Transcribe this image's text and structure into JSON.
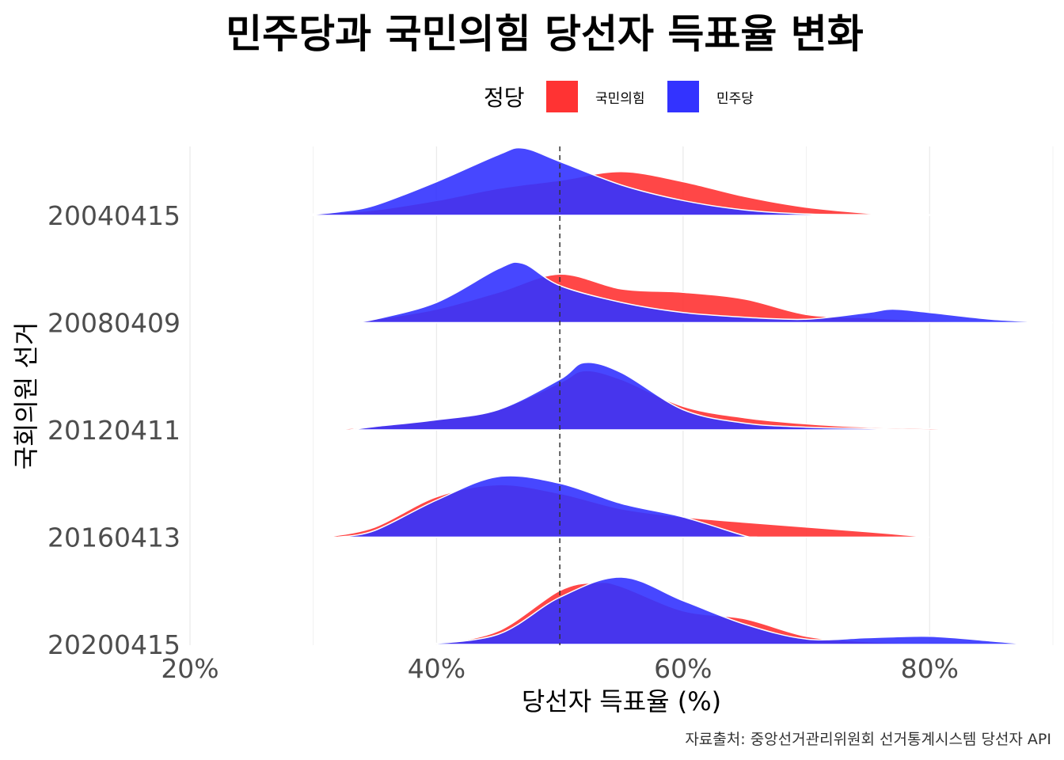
{
  "chart_data": {
    "type": "area",
    "subtype": "ridgeline-density",
    "title": "민주당과 국민의힘 당선자 득표율 변화",
    "xlabel": "당선자 득표율 (%)",
    "ylabel": "국회의원 선거",
    "caption": "자료출처: 중앙선거관리위원회 선거통계시스템 당선자 API",
    "legend": {
      "title": "정당",
      "position": "top",
      "items": [
        {
          "name": "국민의힘",
          "color": "#ff3333"
        },
        {
          "name": "민주당",
          "color": "#3333ff"
        }
      ]
    },
    "xlim": [
      20,
      90
    ],
    "x_ticks": [
      20,
      40,
      60,
      80
    ],
    "x_tick_labels": [
      "20%",
      "40%",
      "60%",
      "80%"
    ],
    "reference_line": 50,
    "grid": true,
    "categories": [
      "20200415",
      "20160413",
      "20120411",
      "20080409",
      "20040415"
    ],
    "series": [
      {
        "name": "국민의힘",
        "color": "#ff3333",
        "densities": [
          {
            "category": "20040415",
            "x": [
              27.5,
              30,
              35,
              40,
              45,
              50,
              55,
              60,
              65,
              70,
              75,
              78
            ],
            "y": [
              0,
              0.02,
              0.08,
              0.22,
              0.4,
              0.52,
              0.65,
              0.5,
              0.28,
              0.12,
              0.03,
              0
            ]
          },
          {
            "category": "20080409",
            "x": [
              32,
              35,
              40,
              45,
              50,
              55,
              60,
              65,
              70,
              75,
              80,
              85,
              90
            ],
            "y": [
              0,
              0.05,
              0.2,
              0.45,
              0.72,
              0.5,
              0.45,
              0.35,
              0.12,
              0.07,
              0.03,
              0.01,
              0
            ]
          },
          {
            "category": "20120411",
            "x": [
              31,
              35,
              40,
              45,
              50,
              52,
              55,
              60,
              65,
              70,
              75,
              80,
              85
            ],
            "y": [
              0,
              0.05,
              0.16,
              0.3,
              0.7,
              0.88,
              0.75,
              0.35,
              0.18,
              0.09,
              0.04,
              0.02,
              0
            ]
          },
          {
            "category": "20160413",
            "x": [
              31,
              35,
              40,
              45,
              50,
              55,
              60,
              65,
              70,
              75,
              80
            ],
            "y": [
              0,
              0.15,
              0.6,
              0.78,
              0.65,
              0.42,
              0.3,
              0.22,
              0.15,
              0.08,
              0
            ]
          },
          {
            "category": "20200415",
            "x": [
              40,
              45,
              50,
              53,
              55,
              60,
              65,
              70,
              75,
              80,
              85
            ],
            "y": [
              0,
              0.2,
              0.8,
              0.92,
              0.86,
              0.5,
              0.38,
              0.12,
              0.04,
              0.01,
              0
            ]
          }
        ]
      },
      {
        "name": "민주당",
        "color": "#3333ff",
        "densities": [
          {
            "category": "20040415",
            "x": [
              29,
              32,
              35,
              40,
              45,
              47,
              50,
              55,
              60,
              65,
              70,
              75,
              80,
              82
            ],
            "y": [
              0,
              0.05,
              0.15,
              0.5,
              0.9,
              1.0,
              0.8,
              0.45,
              0.22,
              0.08,
              0.02,
              0.01,
              0.01,
              0
            ]
          },
          {
            "category": "20080409",
            "x": [
              33,
              35,
              40,
              45,
              47,
              50,
              55,
              60,
              65,
              70,
              75,
              77,
              80,
              85,
              90
            ],
            "y": [
              0,
              0.05,
              0.3,
              0.8,
              0.88,
              0.55,
              0.3,
              0.15,
              0.08,
              0.05,
              0.15,
              0.2,
              0.15,
              0.05,
              0
            ]
          },
          {
            "category": "20120411",
            "x": [
              33,
              35,
              40,
              45,
              50,
              52,
              55,
              60,
              65,
              70,
              75,
              80
            ],
            "y": [
              0,
              0.05,
              0.15,
              0.3,
              0.75,
              1.0,
              0.85,
              0.3,
              0.1,
              0.04,
              0.02,
              0
            ]
          },
          {
            "category": "20160413",
            "x": [
              32,
              35,
              40,
              45,
              50,
              55,
              60,
              65,
              66
            ],
            "y": [
              0,
              0.1,
              0.55,
              0.9,
              0.8,
              0.5,
              0.3,
              0.02,
              0
            ]
          },
          {
            "category": "20200415",
            "x": [
              39,
              45,
              50,
              55,
              60,
              65,
              70,
              75,
              80,
              85,
              88
            ],
            "y": [
              0,
              0.15,
              0.7,
              1.0,
              0.65,
              0.3,
              0.08,
              0.1,
              0.12,
              0.05,
              0
            ]
          }
        ]
      }
    ]
  }
}
